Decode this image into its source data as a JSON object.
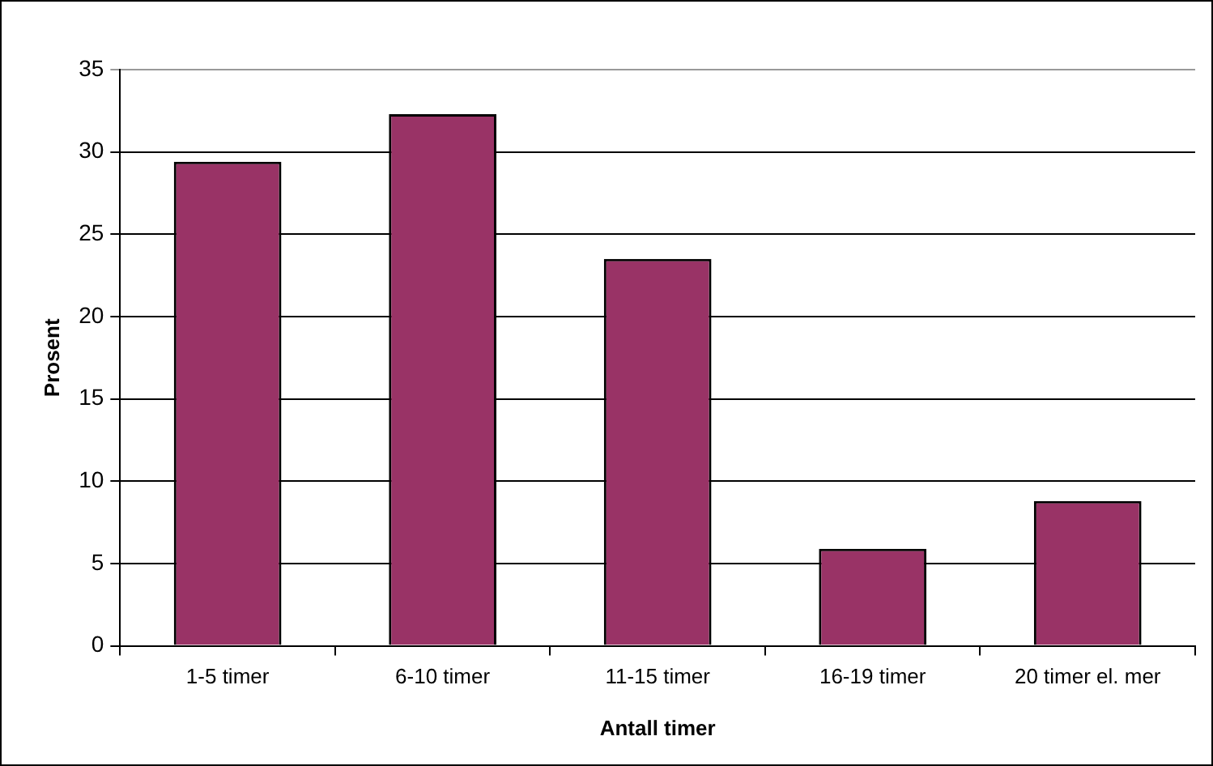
{
  "chart_data": {
    "type": "bar",
    "xlabel": "Antall timer",
    "ylabel": "Prosent",
    "categories": [
      "1-5 timer",
      "6-10 timer",
      "11-15 timer",
      "16-19 timer",
      "20 timer el. mer"
    ],
    "values": [
      29.4,
      32.3,
      23.5,
      5.9,
      8.8
    ],
    "color": "#993366",
    "ylim": [
      0,
      35
    ],
    "yticks": [
      0,
      5,
      10,
      15,
      20,
      25,
      30,
      35
    ],
    "grid": "y",
    "legend": false
  }
}
